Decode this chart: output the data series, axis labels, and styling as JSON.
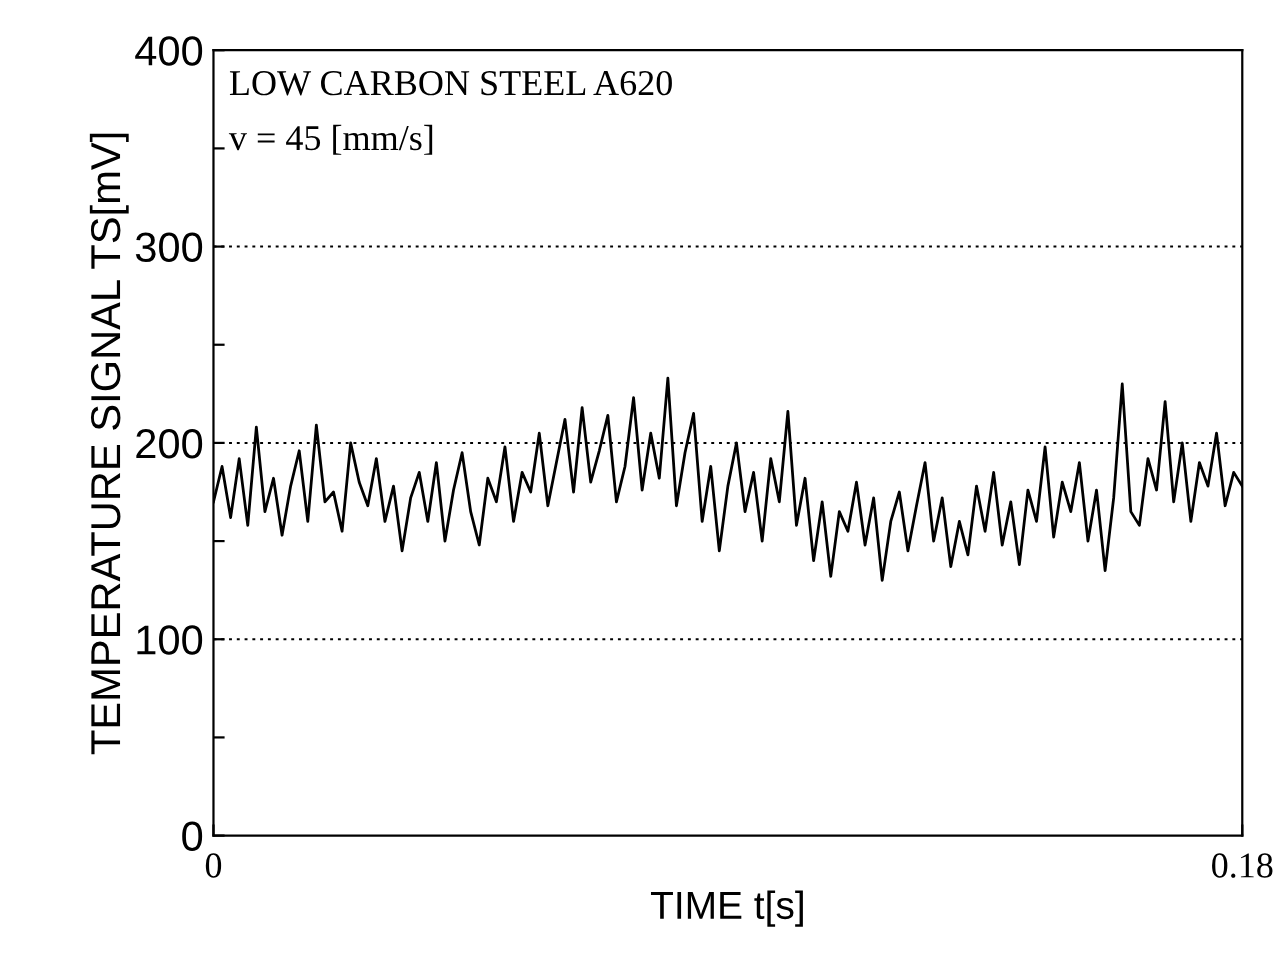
{
  "chart_data": {
    "type": "line",
    "xlabel": "TIME t[s]",
    "ylabel": "TEMPERATURE SIGNAL TS[mV]",
    "annotations": [
      "LOW CARBON STEEL A620",
      "v = 45 [mm/s]"
    ],
    "xlim": [
      0,
      0.18
    ],
    "ylim": [
      0,
      400
    ],
    "xticks": [
      0,
      0.18
    ],
    "yticks": [
      0,
      {
        "value": 50,
        "label": null
      },
      100,
      {
        "value": 150,
        "label": null
      },
      200,
      {
        "value": 250,
        "label": null
      },
      300,
      {
        "value": 350,
        "label": null
      },
      400
    ],
    "grid": "y",
    "legend": false,
    "marker": "none",
    "line_style": "solid",
    "series": [
      {
        "color": "#000000",
        "x": [
          0,
          0.0015,
          0.003,
          0.0045,
          0.006,
          0.0075,
          0.009,
          0.0105,
          0.012,
          0.0135,
          0.015,
          0.0165,
          0.018,
          0.0195,
          0.021,
          0.0225,
          0.024,
          0.0255,
          0.027,
          0.0285,
          0.03,
          0.0315,
          0.033,
          0.0345,
          0.036,
          0.0375,
          0.039,
          0.0405,
          0.042,
          0.0435,
          0.045,
          0.0465,
          0.048,
          0.0495,
          0.051,
          0.0525,
          0.054,
          0.0555,
          0.057,
          0.0585,
          0.06,
          0.0615,
          0.063,
          0.0645,
          0.066,
          0.0675,
          0.069,
          0.0705,
          0.072,
          0.0735,
          0.075,
          0.0765,
          0.078,
          0.0795,
          0.081,
          0.0825,
          0.084,
          0.0855,
          0.087,
          0.0885,
          0.09,
          0.0915,
          0.093,
          0.0945,
          0.096,
          0.0975,
          0.099,
          0.1005,
          0.102,
          0.1035,
          0.105,
          0.1065,
          0.108,
          0.1095,
          0.111,
          0.1125,
          0.114,
          0.1155,
          0.117,
          0.1185,
          0.12,
          0.1215,
          0.123,
          0.1245,
          0.126,
          0.1275,
          0.129,
          0.1305,
          0.132,
          0.1335,
          0.135,
          0.1365,
          0.138,
          0.1395,
          0.141,
          0.1425,
          0.144,
          0.1455,
          0.147,
          0.1485,
          0.15,
          0.1515,
          0.153,
          0.1545,
          0.156,
          0.1575,
          0.159,
          0.1605,
          0.162,
          0.1635,
          0.165,
          0.1665,
          0.168,
          0.1695,
          0.171,
          0.1725,
          0.174,
          0.1755,
          0.177,
          0.1785,
          0.18
        ],
        "values": [
          170,
          188,
          162,
          192,
          158,
          208,
          165,
          182,
          153,
          178,
          196,
          160,
          209,
          170,
          175,
          155,
          200,
          180,
          168,
          192,
          160,
          178,
          145,
          172,
          185,
          160,
          190,
          150,
          176,
          195,
          165,
          148,
          182,
          170,
          198,
          160,
          185,
          175,
          205,
          168,
          190,
          212,
          175,
          218,
          180,
          196,
          214,
          170,
          188,
          223,
          176,
          205,
          182,
          233,
          168,
          195,
          215,
          160,
          188,
          145,
          178,
          200,
          165,
          185,
          150,
          192,
          170,
          216,
          158,
          182,
          140,
          170,
          132,
          165,
          155,
          180,
          148,
          172,
          130,
          160,
          175,
          145,
          168,
          190,
          150,
          172,
          137,
          160,
          143,
          178,
          155,
          185,
          148,
          170,
          138,
          176,
          160,
          198,
          152,
          180,
          165,
          190,
          150,
          176,
          135,
          172,
          230,
          165,
          158,
          192,
          176,
          221,
          170,
          200,
          160,
          190,
          178,
          205,
          168,
          185,
          178
        ]
      }
    ]
  }
}
